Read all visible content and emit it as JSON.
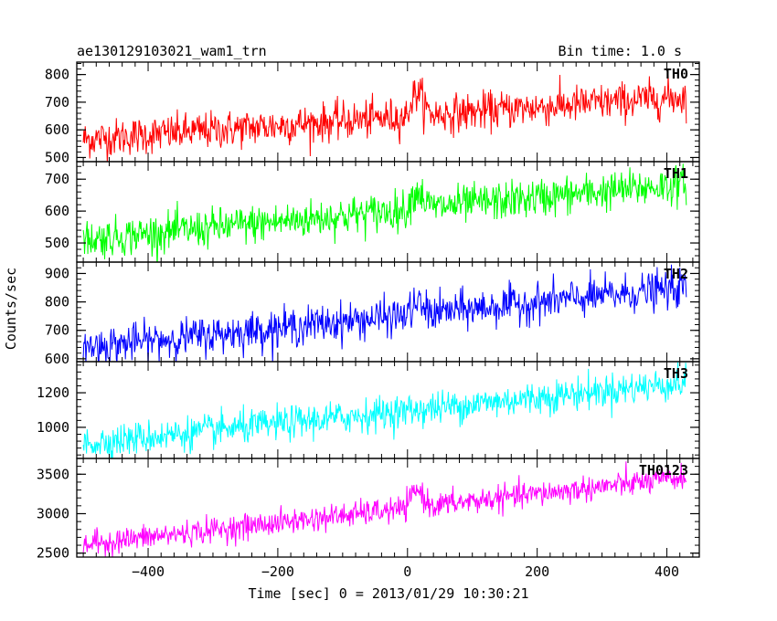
{
  "header": {
    "title": "ae130129103021_wam1_trn",
    "bin_time": "Bin time: 1.0 s"
  },
  "axes": {
    "xlabel": "Time [sec] 0 = 2013/01/29 10:30:21",
    "ylabel": "Counts/sec",
    "xlim": [
      -510,
      450
    ],
    "xticks": [
      -400,
      -200,
      0,
      200,
      400
    ],
    "xtick_labels": [
      "−400",
      "−200",
      "0",
      "200",
      "400"
    ]
  },
  "chart_data": {
    "type": "line",
    "x_range": [
      -500,
      430
    ],
    "bin_seconds": 1.0,
    "panels": [
      {
        "name": "TH0",
        "color": "#ff0000",
        "ylim": [
          485,
          845
        ],
        "yticks": [
          500,
          600,
          700,
          800
        ],
        "trend_start": 565,
        "trend_end": 720,
        "noise": 34,
        "bump": {
          "center": 15,
          "height": 85
        }
      },
      {
        "name": "TH1",
        "color": "#00ff00",
        "ylim": [
          440,
          755
        ],
        "yticks": [
          500,
          600,
          700
        ],
        "trend_start": 510,
        "trend_end": 685,
        "noise": 30,
        "bump": {
          "center": 15,
          "height": 55
        }
      },
      {
        "name": "TH2",
        "color": "#0000ff",
        "ylim": [
          590,
          940
        ],
        "yticks": [
          600,
          700,
          800,
          900
        ],
        "trend_start": 640,
        "trend_end": 850,
        "noise": 33,
        "bump": {
          "center": 15,
          "height": 35
        }
      },
      {
        "name": "TH3",
        "color": "#00ffff",
        "ylim": [
          820,
          1380
        ],
        "yticks": [
          1000,
          1200
        ],
        "trend_start": 905,
        "trend_end": 1260,
        "noise": 48,
        "bump": {
          "center": 15,
          "height": 0
        }
      },
      {
        "name": "TH0123",
        "color": "#ff00ff",
        "ylim": [
          2450,
          3700
        ],
        "yticks": [
          2500,
          3000,
          3500
        ],
        "trend_start": 2610,
        "trend_end": 3460,
        "noise": 80,
        "bump": {
          "center": 15,
          "height": 220
        }
      }
    ]
  }
}
